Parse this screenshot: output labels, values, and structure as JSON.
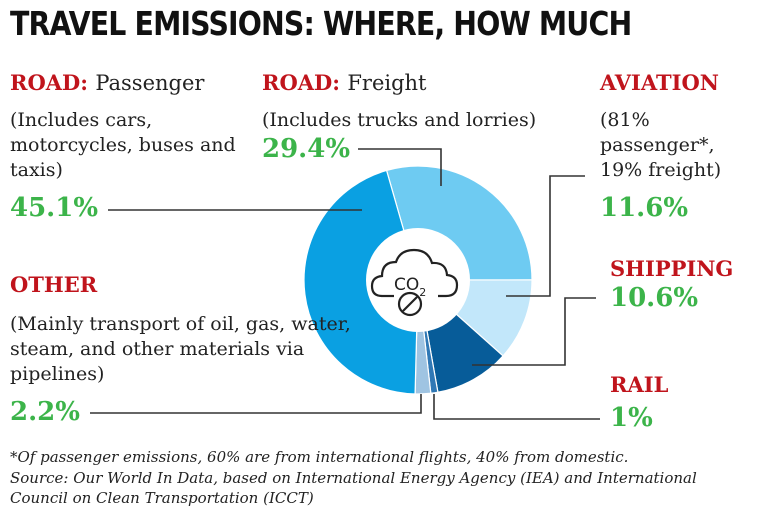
{
  "chart_data": {
    "type": "pie",
    "title": "TRAVEL EMISSIONS: WHERE, HOW MUCH",
    "slices": [
      {
        "category": "ROAD:",
        "name": "Passenger",
        "description": "(Includes cars, motorcycles, buses and taxis)",
        "value": 45.1,
        "label": "45.1%",
        "color": "#0aa0e2"
      },
      {
        "category": "ROAD:",
        "name": "Freight",
        "description": "(Includes trucks and lorries)",
        "value": 29.4,
        "label": "29.4%",
        "color": "#6ecbf2"
      },
      {
        "category": "AVIATION",
        "name": "",
        "description": "(81% passenger*, 19% freight)",
        "value": 11.6,
        "label": "11.6%",
        "color": "#c2e7fa"
      },
      {
        "category": "SHIPPING",
        "name": "",
        "description": "",
        "value": 10.6,
        "label": "10.6%",
        "color": "#075c99"
      },
      {
        "category": "RAIL",
        "name": "",
        "description": "",
        "value": 1,
        "label": "1%",
        "color": "#2f78b5"
      },
      {
        "category": "OTHER",
        "name": "",
        "description": "(Mainly transport of oil, gas, water, steam, and other materials via pipelines)",
        "value": 2.2,
        "label": "2.2%",
        "color": "#9fc4e2"
      }
    ],
    "center_icon": "co2-cloud-icon",
    "center_text": "CO2",
    "start_angle_deg": -16
  },
  "notes": {
    "footnote": "*Of passenger emissions, 60% are from international flights, 40% from domestic.",
    "source": "Source: Our World In Data, based on International Energy Agency (IEA) and International Council on Clean Transportation (ICCT)"
  }
}
